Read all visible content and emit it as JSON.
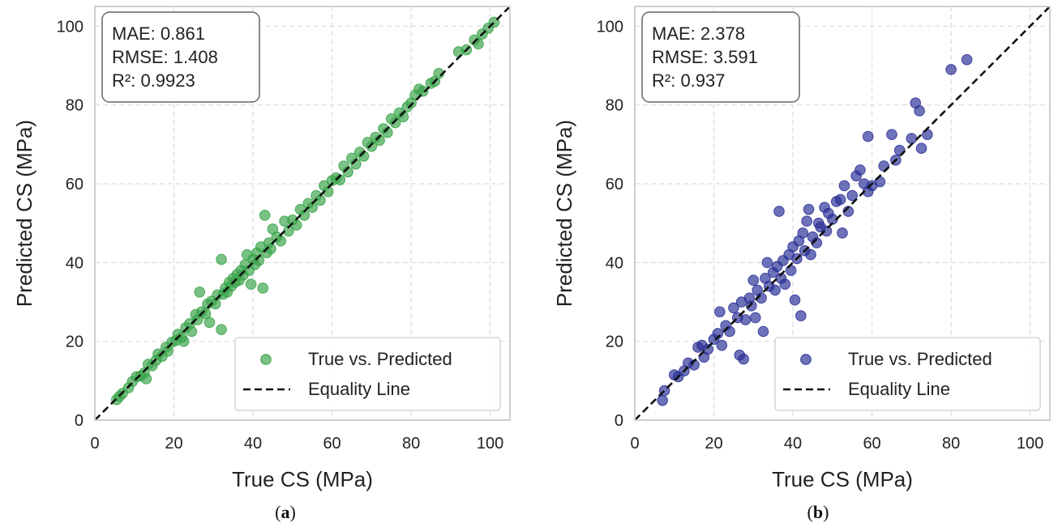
{
  "chart_data": [
    {
      "type": "scatter",
      "panel_label": "a",
      "xlabel": "True CS (MPa)",
      "ylabel": "Predicted CS (MPa)",
      "xlim": [
        0,
        105
      ],
      "ylim": [
        0,
        105
      ],
      "xticks": [
        0,
        20,
        40,
        60,
        80,
        100
      ],
      "yticks": [
        0,
        20,
        40,
        60,
        80,
        100
      ],
      "grid": true,
      "legend_position": "bottom-right",
      "metrics": [
        "MAE: 0.861",
        "RMSE: 1.408",
        "R²: 0.9923"
      ],
      "series": [
        {
          "name": "True vs. Predicted",
          "color": "#3aa34a",
          "points": [
            [
              5.5,
              5.2
            ],
            [
              6.2,
              6.0
            ],
            [
              7.0,
              6.8
            ],
            [
              8.5,
              8.2
            ],
            [
              9.5,
              9.8
            ],
            [
              10.5,
              11.0
            ],
            [
              11.5,
              11.2
            ],
            [
              12.5,
              12.0
            ],
            [
              13.0,
              10.5
            ],
            [
              13.5,
              14.2
            ],
            [
              14.5,
              13.8
            ],
            [
              15.5,
              15.2
            ],
            [
              16.0,
              16.8
            ],
            [
              17.0,
              16.2
            ],
            [
              18.0,
              18.5
            ],
            [
              18.5,
              17.5
            ],
            [
              19.5,
              19.8
            ],
            [
              20.5,
              20.2
            ],
            [
              21.0,
              21.8
            ],
            [
              22.0,
              21.0
            ],
            [
              22.5,
              20.0
            ],
            [
              23.0,
              23.5
            ],
            [
              24.0,
              24.5
            ],
            [
              24.5,
              22.5
            ],
            [
              25.5,
              26.8
            ],
            [
              26.0,
              25.5
            ],
            [
              26.5,
              32.5
            ],
            [
              27.0,
              27.5
            ],
            [
              28.0,
              27.0
            ],
            [
              28.5,
              29.5
            ],
            [
              29.0,
              24.8
            ],
            [
              29.5,
              30.2
            ],
            [
              30.5,
              29.5
            ],
            [
              31.0,
              31.8
            ],
            [
              32.0,
              40.8
            ],
            [
              32.0,
              23.0
            ],
            [
              32.5,
              32.0
            ],
            [
              33.0,
              33.5
            ],
            [
              33.5,
              32.5
            ],
            [
              34.0,
              35.0
            ],
            [
              34.5,
              34.0
            ],
            [
              35.0,
              36.0
            ],
            [
              35.5,
              35.0
            ],
            [
              36.0,
              37.0
            ],
            [
              36.5,
              35.5
            ],
            [
              37.0,
              38.0
            ],
            [
              37.5,
              36.8
            ],
            [
              38.0,
              39.5
            ],
            [
              38.5,
              42.0
            ],
            [
              39.0,
              38.0
            ],
            [
              39.5,
              34.5
            ],
            [
              40.0,
              40.8
            ],
            [
              40.5,
              39.5
            ],
            [
              41.0,
              42.5
            ],
            [
              41.5,
              40.5
            ],
            [
              42.0,
              44.0
            ],
            [
              42.5,
              33.5
            ],
            [
              43.0,
              52.0
            ],
            [
              43.5,
              42.5
            ],
            [
              44.0,
              45.0
            ],
            [
              44.5,
              43.5
            ],
            [
              45.0,
              48.5
            ],
            [
              46.0,
              46.5
            ],
            [
              47.0,
              45.5
            ],
            [
              48.0,
              50.5
            ],
            [
              49.0,
              48.0
            ],
            [
              50.0,
              50.8
            ],
            [
              51.0,
              49.5
            ],
            [
              52.0,
              53.5
            ],
            [
              53.0,
              52.0
            ],
            [
              54.0,
              55.0
            ],
            [
              55.0,
              54.0
            ],
            [
              56.0,
              57.0
            ],
            [
              57.0,
              55.8
            ],
            [
              58.0,
              59.5
            ],
            [
              59.0,
              58.0
            ],
            [
              60.0,
              60.8
            ],
            [
              61.0,
              61.5
            ],
            [
              62.0,
              61.0
            ],
            [
              63.0,
              64.5
            ],
            [
              64.0,
              63.0
            ],
            [
              65.0,
              66.5
            ],
            [
              66.0,
              65.0
            ],
            [
              67.0,
              68.0
            ],
            [
              68.0,
              67.0
            ],
            [
              69.0,
              70.5
            ],
            [
              70.0,
              69.5
            ],
            [
              71.0,
              71.8
            ],
            [
              72.0,
              71.0
            ],
            [
              73.0,
              74.0
            ],
            [
              74.0,
              73.0
            ],
            [
              75.0,
              76.5
            ],
            [
              76.0,
              75.5
            ],
            [
              77.0,
              78.0
            ],
            [
              78.0,
              77.0
            ],
            [
              79.0,
              79.5
            ],
            [
              80.0,
              80.5
            ],
            [
              81.0,
              82.5
            ],
            [
              82.0,
              84.0
            ],
            [
              83.0,
              83.5
            ],
            [
              85.0,
              85.5
            ],
            [
              86.0,
              86.0
            ],
            [
              87.0,
              88.0
            ],
            [
              92.0,
              93.5
            ],
            [
              94.0,
              94.0
            ],
            [
              96.0,
              96.5
            ],
            [
              98.0,
              98.0
            ],
            [
              99.5,
              99.5
            ],
            [
              101.0,
              101.0
            ],
            [
              97.0,
              95.5
            ]
          ]
        },
        {
          "name": "Equality Line",
          "style": "dashed",
          "color": "#111111"
        }
      ]
    },
    {
      "type": "scatter",
      "panel_label": "b",
      "xlabel": "True CS (MPa)",
      "ylabel": "Predicted CS (MPa)",
      "xlim": [
        0,
        105
      ],
      "ylim": [
        0,
        105
      ],
      "xticks": [
        0,
        20,
        40,
        60,
        80,
        100
      ],
      "yticks": [
        0,
        20,
        40,
        60,
        80,
        100
      ],
      "grid": true,
      "legend_position": "bottom-right",
      "metrics": [
        "MAE: 2.378",
        "RMSE: 3.591",
        "R²: 0.937"
      ],
      "series": [
        {
          "name": "True vs. Predicted",
          "color": "#2a2f96",
          "points": [
            [
              7.0,
              5.0
            ],
            [
              7.5,
              7.5
            ],
            [
              10.0,
              11.5
            ],
            [
              11.0,
              11.0
            ],
            [
              12.5,
              12.5
            ],
            [
              13.5,
              14.5
            ],
            [
              15.0,
              14.0
            ],
            [
              16.0,
              18.5
            ],
            [
              17.0,
              19.0
            ],
            [
              17.5,
              16.0
            ],
            [
              18.5,
              18.0
            ],
            [
              20.0,
              20.5
            ],
            [
              21.0,
              22.0
            ],
            [
              21.5,
              27.5
            ],
            [
              22.0,
              19.0
            ],
            [
              23.0,
              24.0
            ],
            [
              24.0,
              22.5
            ],
            [
              25.0,
              28.5
            ],
            [
              26.0,
              26.0
            ],
            [
              26.5,
              16.5
            ],
            [
              27.0,
              30.0
            ],
            [
              27.5,
              15.5
            ],
            [
              28.0,
              25.5
            ],
            [
              29.0,
              31.0
            ],
            [
              29.5,
              29.0
            ],
            [
              30.0,
              35.5
            ],
            [
              30.5,
              26.0
            ],
            [
              31.0,
              33.0
            ],
            [
              32.0,
              31.0
            ],
            [
              32.5,
              22.5
            ],
            [
              33.0,
              36.0
            ],
            [
              33.5,
              40.0
            ],
            [
              34.0,
              34.0
            ],
            [
              35.0,
              37.5
            ],
            [
              35.5,
              33.0
            ],
            [
              36.0,
              39.0
            ],
            [
              36.5,
              53.0
            ],
            [
              37.0,
              36.0
            ],
            [
              37.5,
              40.5
            ],
            [
              38.0,
              34.5
            ],
            [
              39.0,
              42.0
            ],
            [
              39.5,
              38.0
            ],
            [
              40.0,
              44.0
            ],
            [
              40.5,
              30.5
            ],
            [
              41.0,
              41.0
            ],
            [
              41.5,
              45.5
            ],
            [
              42.0,
              26.5
            ],
            [
              42.5,
              47.5
            ],
            [
              43.0,
              43.0
            ],
            [
              43.5,
              50.5
            ],
            [
              44.0,
              53.5
            ],
            [
              44.5,
              42.0
            ],
            [
              45.0,
              46.5
            ],
            [
              46.0,
              45.0
            ],
            [
              46.5,
              50.0
            ],
            [
              47.0,
              49.0
            ],
            [
              48.0,
              54.0
            ],
            [
              48.5,
              48.0
            ],
            [
              49.0,
              52.5
            ],
            [
              50.0,
              51.0
            ],
            [
              51.0,
              55.5
            ],
            [
              52.0,
              56.0
            ],
            [
              52.5,
              47.5
            ],
            [
              53.0,
              59.5
            ],
            [
              54.0,
              53.0
            ],
            [
              55.0,
              57.0
            ],
            [
              56.0,
              62.0
            ],
            [
              57.0,
              63.5
            ],
            [
              58.0,
              60.0
            ],
            [
              59.0,
              58.0
            ],
            [
              59.0,
              72.0
            ],
            [
              60.0,
              59.5
            ],
            [
              62.0,
              60.5
            ],
            [
              63.0,
              64.5
            ],
            [
              65.0,
              72.5
            ],
            [
              66.0,
              66.0
            ],
            [
              67.0,
              68.5
            ],
            [
              70.0,
              71.5
            ],
            [
              71.0,
              80.5
            ],
            [
              72.0,
              78.5
            ],
            [
              72.5,
              69.0
            ],
            [
              74.0,
              72.5
            ],
            [
              80.0,
              89.0
            ],
            [
              84.0,
              91.5
            ]
          ]
        },
        {
          "name": "Equality Line",
          "style": "dashed",
          "color": "#111111"
        }
      ]
    }
  ]
}
